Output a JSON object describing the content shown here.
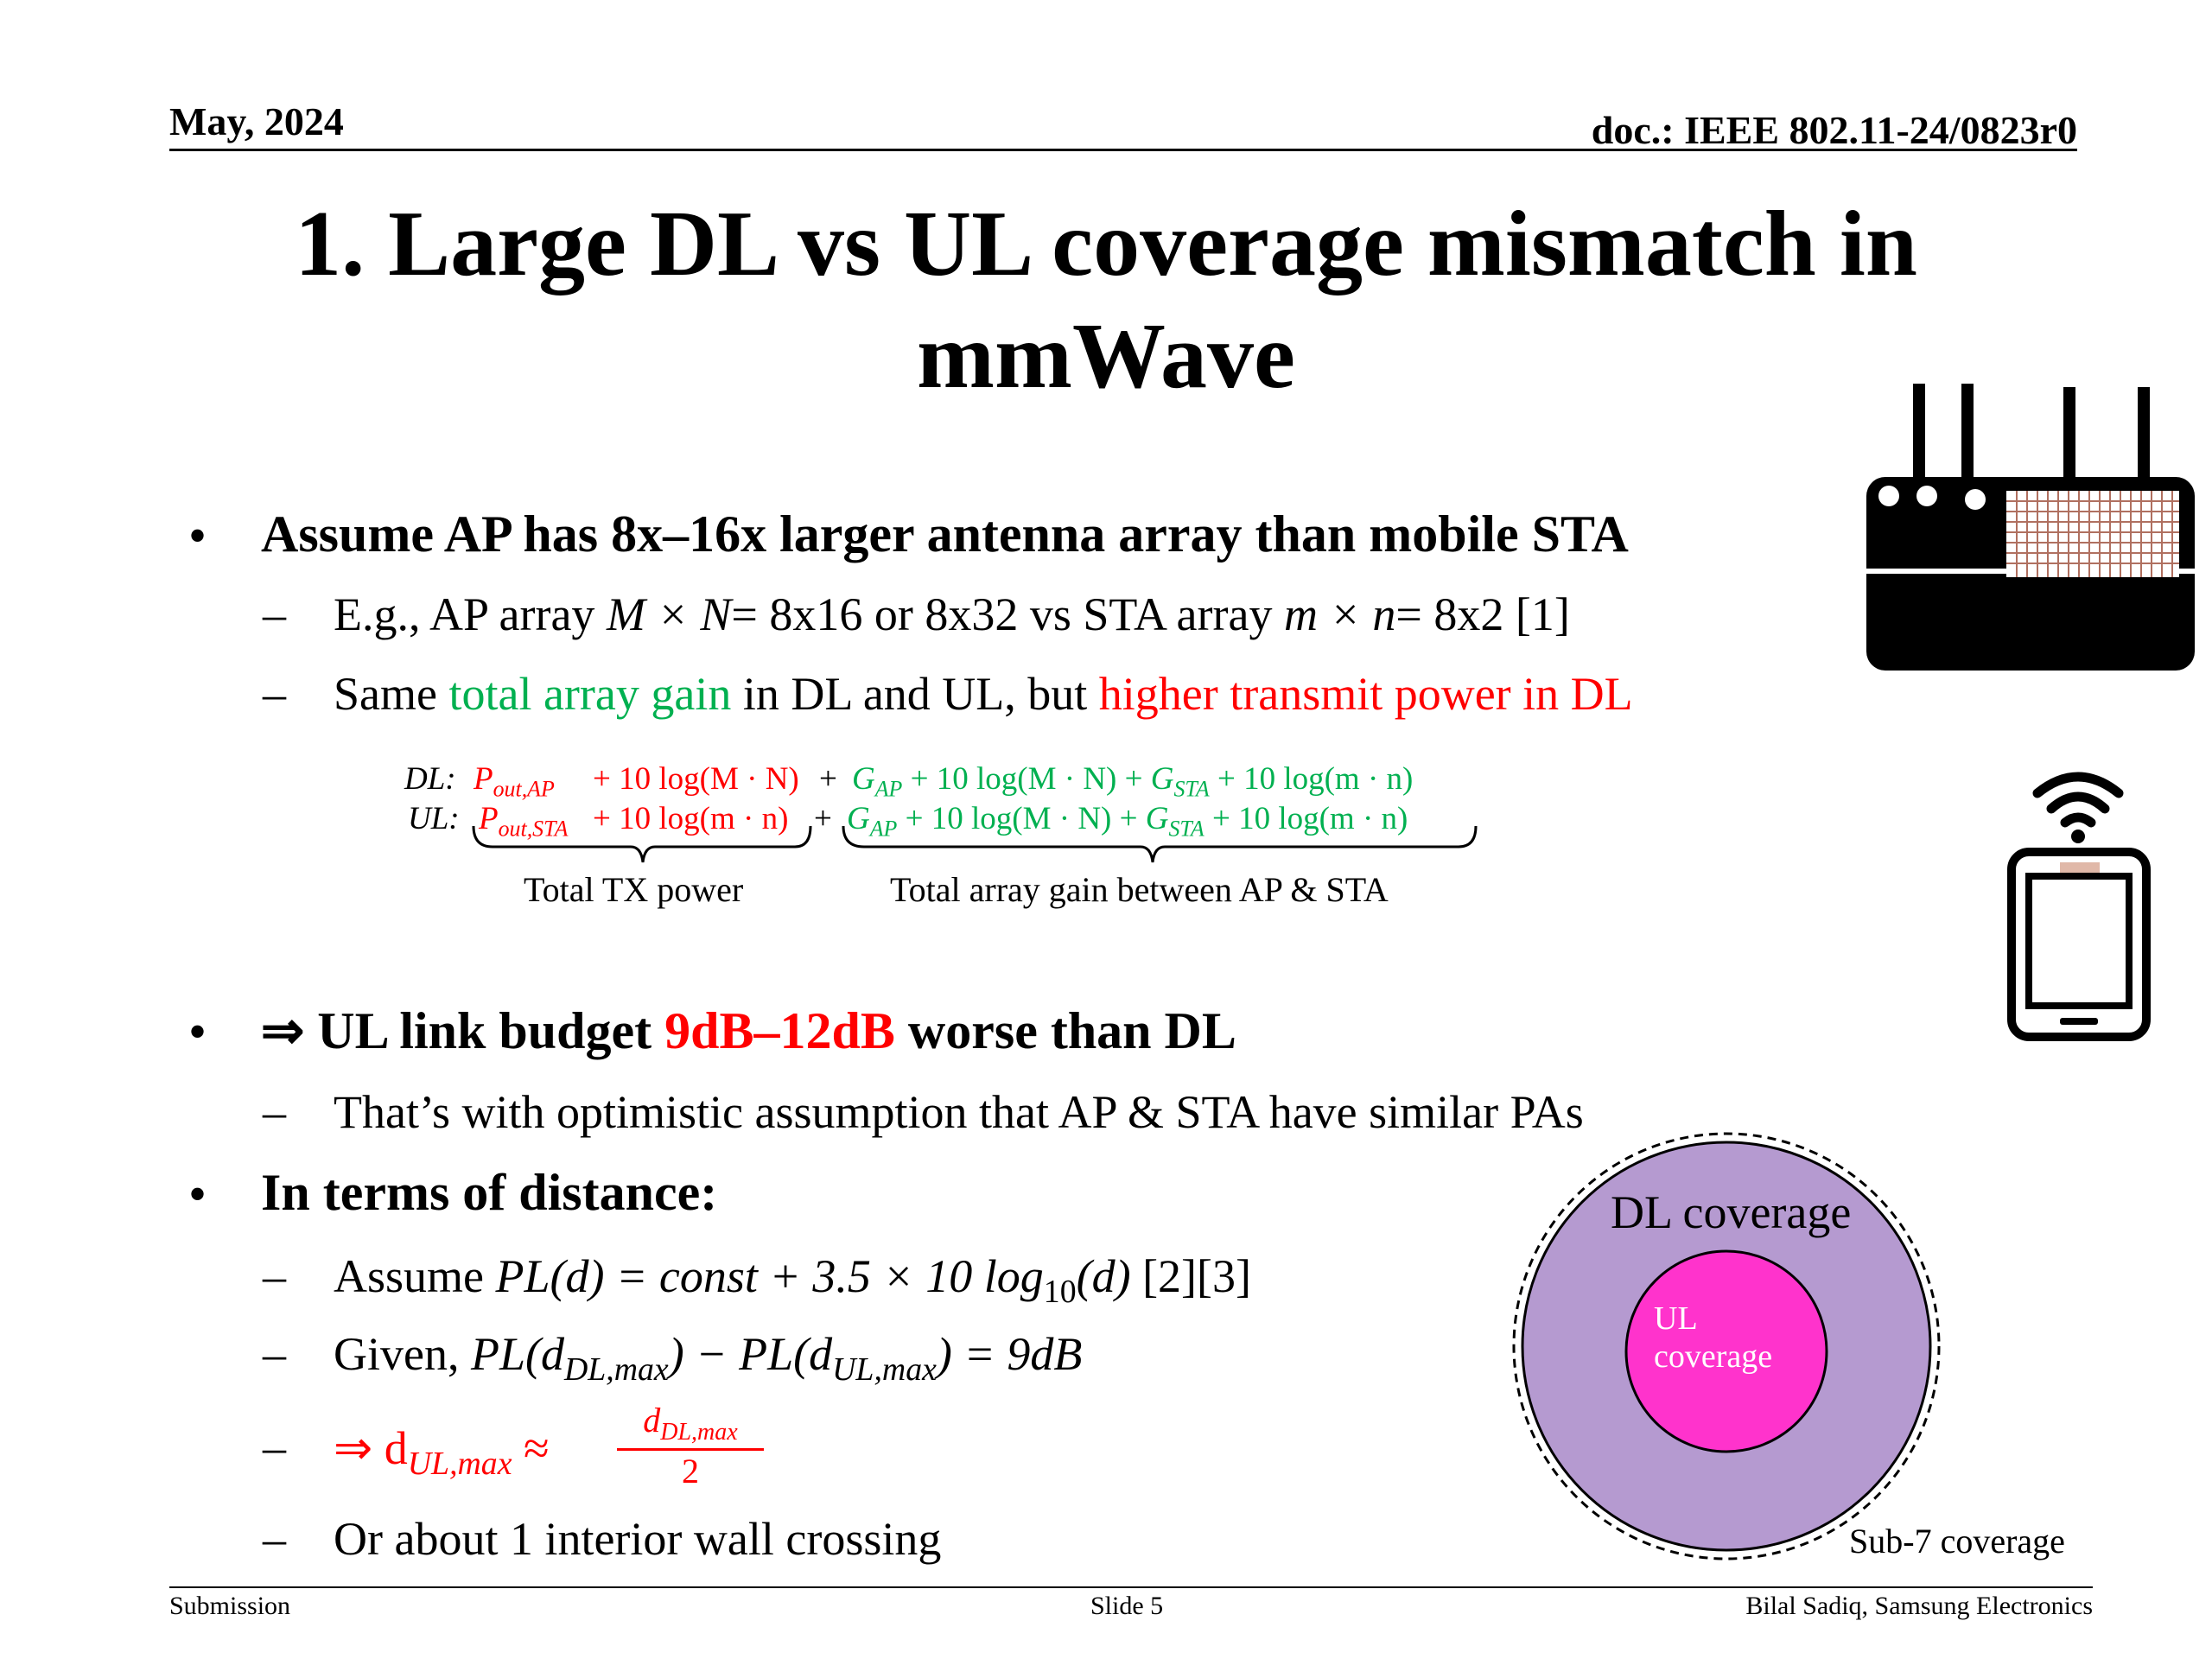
{
  "header": {
    "date": "May, 2024",
    "doc": "doc.: IEEE 802.11-24/0823r0"
  },
  "title": {
    "line1": "1. Large DL vs UL coverage mismatch in",
    "line2": "mmWave"
  },
  "bullets": {
    "b1": "Assume AP has 8x–16x larger antenna array than mobile STA",
    "b1_sub1": {
      "a": "E.g., AP array ",
      "b": "M × N",
      "c": "= 8x16 or 8x32 vs STA array ",
      "d": "m × n",
      "e": "= 8x2   [1]"
    },
    "b1_sub2": {
      "a": "Same ",
      "b": "total array gain",
      "c": " in DL and UL, but ",
      "d": "higher transmit power in DL"
    },
    "b2_a": "⇒ UL link budget ",
    "b2_b": "9dB–12dB",
    "b2_c": " worse than DL",
    "b2_sub1": "That’s with optimistic assumption that AP & STA have similar PAs",
    "b3": "In terms of distance:",
    "b3_sub1": {
      "a": "Assume ",
      "b": "PL(d) = const + 3.5 × 10 log",
      "c": "10",
      "d": "(d)",
      "e": "  [2][3]"
    },
    "b3_sub2": {
      "a": "Given, ",
      "b": "PL(d",
      "c": "DL,max",
      "d": ") − PL(d",
      "e": "UL,max",
      "f": ") = 9dB"
    },
    "b3_sub3": {
      "a": "⇒ d",
      "b": "UL,max",
      "c": " ≈ ",
      "num": "d",
      "num_sub": "DL,max",
      "den": "2"
    },
    "b3_sub4": "Or about 1 interior wall crossing",
    "bullet_char": "•",
    "dash_char": "–"
  },
  "equation": {
    "dl_label": "DL:",
    "ul_label": "UL:",
    "dl_p": "P",
    "dl_p_sub": "out,AP",
    "ul_p": "P",
    "ul_p_sub": "out,STA",
    "dl_plus_log": "+ 10 log(M · N)",
    "ul_plus_log": "+ 10 log(m · n)",
    "plus": "+",
    "g_ap": "G",
    "g_ap_sub": "AP",
    "gain_mid": " + 10 log(M · N) + ",
    "g_sta": "G",
    "g_sta_sub": "STA",
    "gain_end": " + 10 log(m · n)",
    "total_tx": "Total TX power",
    "total_gain": "Total array gain between AP & STA"
  },
  "coverage": {
    "dl": "DL coverage",
    "ul_line1": "UL",
    "ul_line2": "coverage",
    "sub7": "Sub-7 coverage",
    "dl_color": "#b59ad0",
    "ul_color": "#ff33cc"
  },
  "footer": {
    "left": "Submission",
    "center": "Slide 5",
    "right": "Bilal Sadiq, Samsung Electronics"
  },
  "icons": {
    "router": "router-icon",
    "phone": "phone-icon",
    "wifi": "wifi-icon"
  }
}
